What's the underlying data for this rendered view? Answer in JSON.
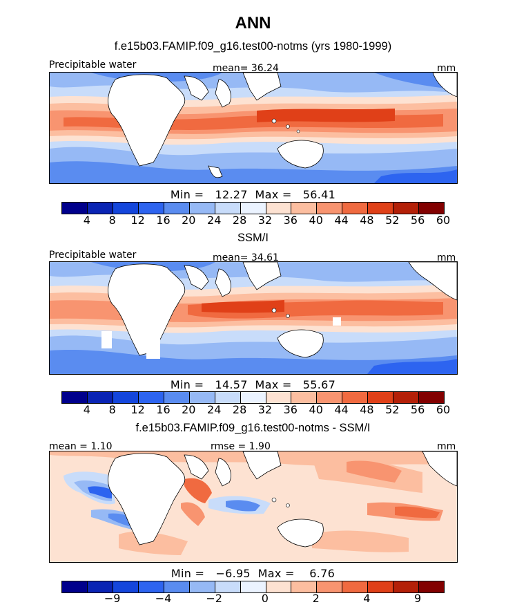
{
  "title": "ANN",
  "panels": [
    {
      "subtitle": "f.e15b03.FAMIP.f09_g16.test00-notms (yrs 1980-1999)",
      "left_label": "Precipitable water",
      "center_label": "mean=  36.24",
      "right_label": "mm",
      "minmax": "Min =   12.27  Max =   56.41",
      "tick_labels": [
        "4",
        "8",
        "12",
        "16",
        "20",
        "24",
        "28",
        "32",
        "36",
        "40",
        "44",
        "48",
        "52",
        "56",
        "60"
      ]
    },
    {
      "subtitle": "SSM/I",
      "left_label": "Precipitable water",
      "center_label": "mean=  34.61",
      "right_label": "mm",
      "minmax": "Min =   14.57  Max =   55.67",
      "tick_labels": [
        "4",
        "8",
        "12",
        "16",
        "20",
        "24",
        "28",
        "32",
        "36",
        "40",
        "44",
        "48",
        "52",
        "56",
        "60"
      ]
    },
    {
      "subtitle": "f.e15b03.FAMIP.f09_g16.test00-notms - SSM/I",
      "left_label": "mean =    1.10",
      "center_label": "rmse =    1.90",
      "right_label": "mm",
      "minmax": "Min =   −6.95  Max =    6.76",
      "tick_labels": [
        "−9",
        "−4",
        "−2",
        "0",
        "2",
        "4",
        "9"
      ]
    }
  ],
  "colors": {
    "colorbar": [
      "#00008c",
      "#0a24b4",
      "#1446dc",
      "#2d64f0",
      "#5a8cf0",
      "#96b9f5",
      "#c8dcfa",
      "#ebf3ff",
      "#fde2d2",
      "#fcbea0",
      "#f89470",
      "#f06a40",
      "#e04018",
      "#b42008",
      "#820000"
    ],
    "land": "#ffffff",
    "missing": "#ffffff"
  },
  "colorbar_levels_panel3": [
    "-9",
    "-4",
    "-2",
    "0",
    "2",
    "4",
    "9"
  ]
}
